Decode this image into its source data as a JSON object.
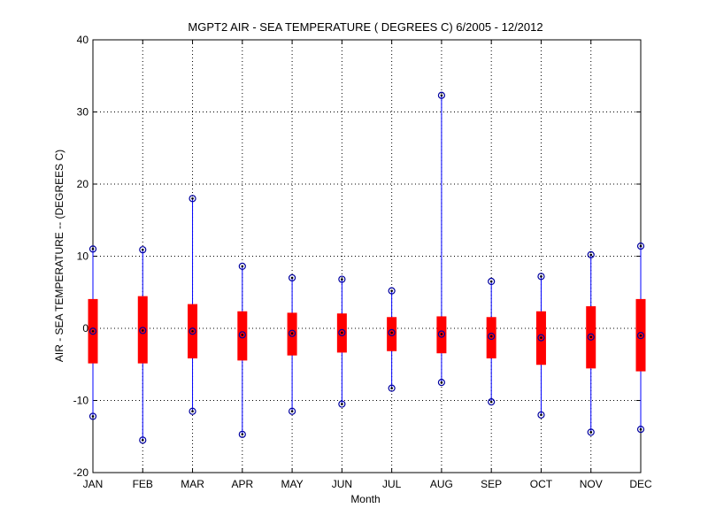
{
  "chart_data": {
    "type": "boxplot",
    "title": "MGPT2  AIR - SEA TEMPERATURE ( DEGREES C) 6/2005 - 12/2012",
    "xlabel": "Month",
    "ylabel": "AIR - SEA TEMPERATURE -- (DEGREES C)",
    "ylim": [
      -20,
      40
    ],
    "yticks": [
      -20,
      -10,
      0,
      10,
      20,
      30,
      40
    ],
    "grid": true,
    "categories": [
      "JAN",
      "FEB",
      "MAR",
      "APR",
      "MAY",
      "JUN",
      "JUL",
      "AUG",
      "SEP",
      "OCT",
      "NOV",
      "DEC"
    ],
    "max": [
      11.0,
      10.9,
      18.0,
      8.6,
      7.0,
      6.8,
      5.2,
      32.3,
      6.5,
      7.2,
      10.2,
      11.4
    ],
    "q3": [
      4.0,
      4.4,
      3.3,
      2.3,
      2.1,
      2.0,
      1.5,
      1.6,
      1.5,
      2.3,
      3.0,
      4.0
    ],
    "median": [
      -0.4,
      -0.3,
      -0.4,
      -0.9,
      -0.7,
      -0.6,
      -0.6,
      -0.8,
      -1.1,
      -1.3,
      -1.2,
      -1.0
    ],
    "q1": [
      -4.8,
      -4.8,
      -4.1,
      -4.4,
      -3.7,
      -3.3,
      -3.1,
      -3.4,
      -4.1,
      -5.0,
      -5.5,
      -5.9
    ],
    "min": [
      -12.2,
      -15.5,
      -11.5,
      -14.7,
      -11.5,
      -10.5,
      -8.3,
      -7.5,
      -10.2,
      -12.0,
      -14.4,
      -14.0
    ],
    "colors": {
      "box": "#ff0000",
      "whisker": "#0000ff",
      "marker": "#0000a0"
    }
  }
}
